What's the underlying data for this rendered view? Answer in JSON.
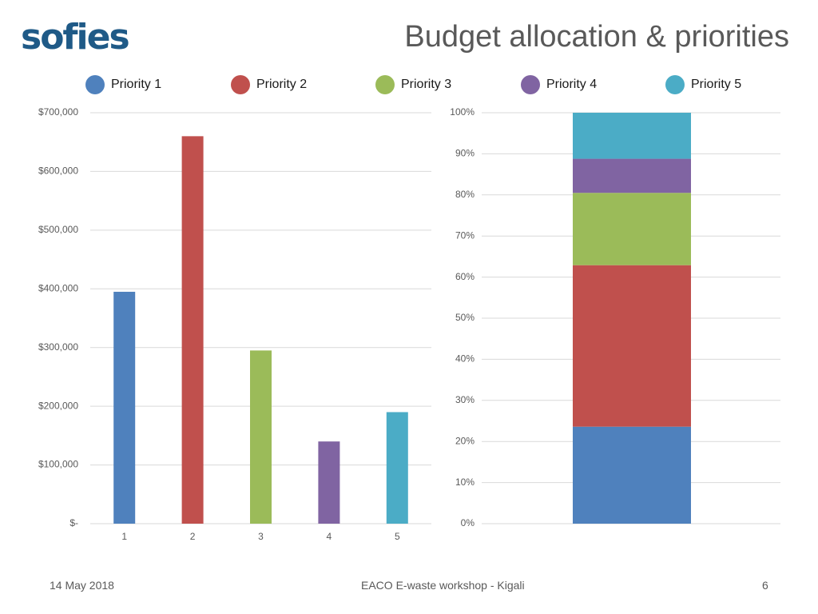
{
  "header": {
    "logo_text": "sofies",
    "title": "Budget allocation & priorities"
  },
  "colors": {
    "logo": "#1f5a87",
    "grid": "#d9d9d9",
    "tick": "#595959",
    "series": [
      "#4f81bd",
      "#c0504d",
      "#9bbb59",
      "#8064a2",
      "#4bacc6"
    ]
  },
  "legend": [
    {
      "label": "Priority 1",
      "color": "#4f81bd"
    },
    {
      "label": "Priority 2",
      "color": "#c0504d"
    },
    {
      "label": "Priority 3",
      "color": "#9bbb59"
    },
    {
      "label": "Priority 4",
      "color": "#8064a2"
    },
    {
      "label": "Priority 5",
      "color": "#4bacc6"
    }
  ],
  "chart_data": [
    {
      "type": "bar",
      "title": "",
      "categories": [
        "1",
        "2",
        "3",
        "4",
        "5"
      ],
      "values": [
        395000,
        660000,
        295000,
        140000,
        190000
      ],
      "colors": [
        "#4f81bd",
        "#c0504d",
        "#9bbb59",
        "#8064a2",
        "#4bacc6"
      ],
      "ylim": [
        0,
        700000
      ],
      "ytick_values": [
        0,
        100000,
        200000,
        300000,
        400000,
        500000,
        600000,
        700000
      ],
      "ytick_labels": [
        "$-",
        "$100,000",
        "$200,000",
        "$300,000",
        "$400,000",
        "$500,000",
        "$600,000",
        "$700,000"
      ],
      "xlabel": "",
      "ylabel": "",
      "grid": true
    },
    {
      "type": "bar",
      "stacked": true,
      "percent": true,
      "title": "",
      "series": [
        {
          "name": "Priority 1",
          "values": [
            23.6
          ]
        },
        {
          "name": "Priority 2",
          "values": [
            39.3
          ]
        },
        {
          "name": "Priority 3",
          "values": [
            17.6
          ]
        },
        {
          "name": "Priority 4",
          "values": [
            8.3
          ]
        },
        {
          "name": "Priority 5",
          "values": [
            11.2
          ]
        }
      ],
      "colors": [
        "#4f81bd",
        "#c0504d",
        "#9bbb59",
        "#8064a2",
        "#4bacc6"
      ],
      "ylim": [
        0,
        100
      ],
      "ytick_values": [
        0,
        10,
        20,
        30,
        40,
        50,
        60,
        70,
        80,
        90,
        100
      ],
      "ytick_labels": [
        "0%",
        "10%",
        "20%",
        "30%",
        "40%",
        "50%",
        "60%",
        "70%",
        "80%",
        "90%",
        "100%"
      ],
      "xlabel": "",
      "ylabel": "",
      "grid": true
    }
  ],
  "footer": {
    "date": "14 May 2018",
    "event": "EACO E-waste workshop - Kigali",
    "page": "6"
  }
}
